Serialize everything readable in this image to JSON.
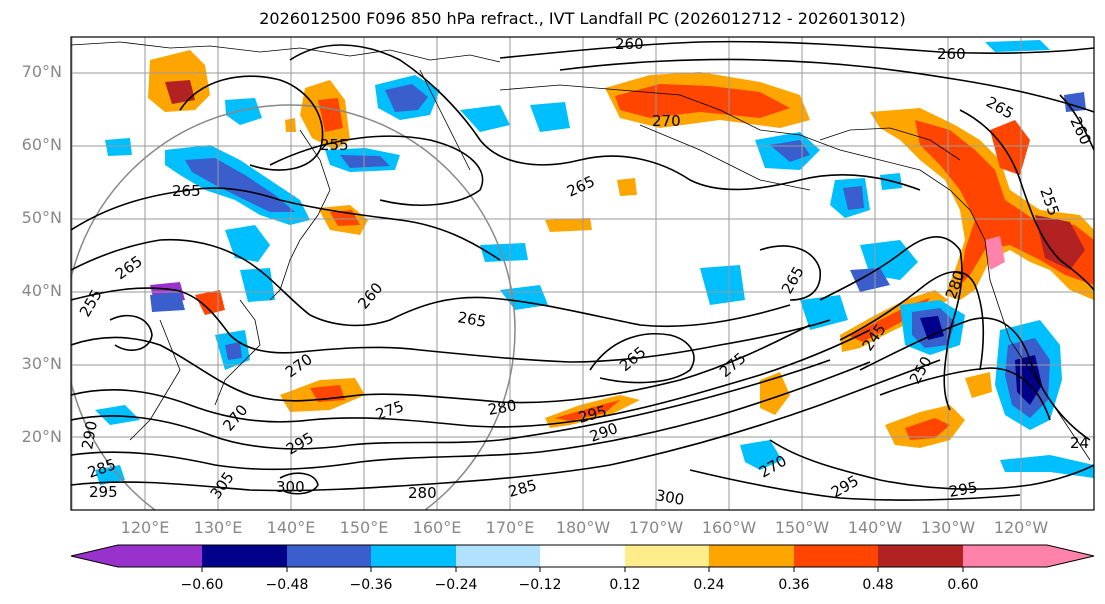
{
  "title": "2026012500 F096 850 hPa refract., IVT Landfall PC (2026012712 - 2026013012)",
  "lat_labels": [
    "70°N",
    "60°N",
    "50°N",
    "40°N",
    "30°N",
    "20°N"
  ],
  "lon_labels": [
    "120°E",
    "130°E",
    "140°E",
    "150°E",
    "160°E",
    "170°E",
    "180°W",
    "170°W",
    "160°W",
    "150°W",
    "140°W",
    "130°W",
    "120°W"
  ],
  "contour_labels": [
    "260",
    "260",
    "265",
    "265",
    "265",
    "255",
    "255",
    "265",
    "270",
    "260",
    "265",
    "265",
    "275",
    "270",
    "280",
    "285",
    "290",
    "295",
    "290",
    "275",
    "270",
    "295",
    "300",
    "305",
    "285",
    "280",
    "295",
    "295",
    "250",
    "245",
    "255",
    "24",
    "265",
    "260",
    "270",
    "300",
    "295",
    "280"
  ],
  "colorbar": {
    "ticks": [
      "−0.60",
      "−0.48",
      "−0.36",
      "−0.24",
      "−0.12",
      "0.12",
      "0.24",
      "0.36",
      "0.48",
      "0.60"
    ],
    "colors": [
      "#9932cc",
      "#00008b",
      "#3a5fcd",
      "#00bfff",
      "#b0e2ff",
      "#ffffff",
      "#ffec8b",
      "#ffa500",
      "#ff4500",
      "#b22222",
      "#ff82ab"
    ]
  }
}
